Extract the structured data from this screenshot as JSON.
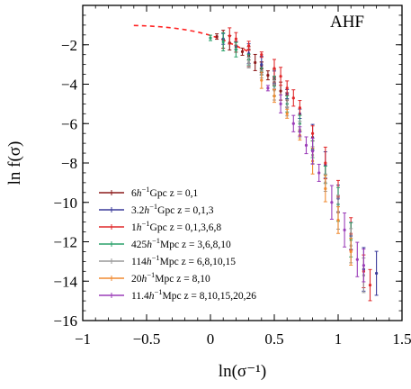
{
  "chart_data": {
    "type": "scatter",
    "title": "",
    "annotation": "AHF",
    "xlabel": "ln(σ⁻¹)",
    "ylabel": "ln f(σ)",
    "xlim": [
      -1,
      1.5
    ],
    "ylim": [
      -16,
      0
    ],
    "xticks": [
      -1,
      -0.5,
      0,
      0.5,
      1,
      1.5
    ],
    "xtick_labels": [
      "−1",
      "−0.5",
      "0",
      "0.5",
      "1",
      "1.5"
    ],
    "yticks": [
      -16,
      -14,
      -12,
      -10,
      -8,
      -6,
      -4,
      -2
    ],
    "ytick_labels": [
      "−16",
      "−14",
      "−12",
      "−10",
      "−8",
      "−6",
      "−4",
      "−2"
    ],
    "grid": false,
    "legend_position": "lower-left",
    "fit_curve": {
      "style": "dashed",
      "color": "#ff2222",
      "points": [
        [
          -0.6,
          -1.02
        ],
        [
          -0.5,
          -1.04
        ],
        [
          -0.4,
          -1.08
        ],
        [
          -0.3,
          -1.14
        ],
        [
          -0.2,
          -1.23
        ],
        [
          -0.1,
          -1.35
        ],
        [
          0.0,
          -1.52
        ],
        [
          0.1,
          -1.75
        ],
        [
          0.2,
          -2.05
        ],
        [
          0.3,
          -2.35
        ]
      ]
    },
    "series": [
      {
        "name": "6h⁻¹Gpc z = 0,1",
        "label_parts": [
          "6",
          "h",
          "−1",
          "Gpc z = 0,1"
        ],
        "color": "#8b1a1a",
        "points": [
          [
            0.05,
            -1.58
          ],
          [
            0.1,
            -1.72
          ],
          [
            0.15,
            -1.9
          ],
          [
            0.2,
            -2.1
          ],
          [
            0.25,
            -2.35
          ],
          [
            0.3,
            -2.6
          ],
          [
            0.35,
            -2.9
          ],
          [
            0.4,
            -3.2
          ],
          [
            0.45,
            -3.55
          ],
          [
            0.5,
            -3.9
          ],
          [
            0.55,
            -4.35
          ],
          [
            0.6,
            -4.8
          ],
          [
            0.3,
            -2.5
          ],
          [
            0.4,
            -3.05
          ],
          [
            0.5,
            -3.75
          ]
        ]
      },
      {
        "name": "3.2h⁻¹Gpc z = 0,1,3",
        "label_parts": [
          "3.2",
          "h",
          "−1",
          "Gpc z = 0,1,3"
        ],
        "color": "#3a3a9a",
        "points": [
          [
            0.1,
            -1.7
          ],
          [
            0.2,
            -2.05
          ],
          [
            0.3,
            -2.45
          ],
          [
            0.4,
            -3.0
          ],
          [
            0.5,
            -3.65
          ],
          [
            0.6,
            -4.5
          ],
          [
            0.7,
            -5.5
          ],
          [
            0.8,
            -6.7
          ],
          [
            0.9,
            -8.1
          ],
          [
            1.0,
            -9.8
          ],
          [
            1.1,
            -11.7
          ],
          [
            1.2,
            -13.4
          ],
          [
            1.3,
            -13.6
          ]
        ]
      },
      {
        "name": "1h⁻¹Gpc z = 0,1,3,6,8",
        "label_parts": [
          "1",
          "h",
          "−1",
          "Gpc z = 0,1,3,6,8"
        ],
        "color": "#e0282a",
        "points": [
          [
            0.15,
            -1.55
          ],
          [
            0.2,
            -1.7
          ],
          [
            0.3,
            -2.05
          ],
          [
            0.4,
            -2.5
          ],
          [
            0.5,
            -3.2
          ],
          [
            0.6,
            -4.2
          ],
          [
            0.7,
            -5.2
          ],
          [
            0.8,
            -6.5
          ],
          [
            0.9,
            -8.0
          ],
          [
            1.0,
            -9.7
          ],
          [
            1.1,
            -11.6
          ],
          [
            1.2,
            -13.5
          ],
          [
            1.25,
            -14.2
          ],
          [
            0.55,
            -3.6
          ],
          [
            0.65,
            -4.7
          ]
        ]
      },
      {
        "name": "425h⁻¹Mpc z = 3,6,8,10",
        "label_parts": [
          "425",
          "h",
          "−1",
          "Mpc z = 3,6,8,10"
        ],
        "color": "#2aa06a",
        "points": [
          [
            0.0,
            -1.65
          ],
          [
            0.1,
            -1.85
          ],
          [
            0.2,
            -2.25
          ],
          [
            0.3,
            -2.75
          ],
          [
            0.4,
            -3.35
          ],
          [
            0.5,
            -4.1
          ],
          [
            0.6,
            -5.0
          ],
          [
            0.7,
            -6.0
          ],
          [
            0.8,
            -7.3
          ],
          [
            0.9,
            -8.6
          ],
          [
            1.0,
            -10.1
          ],
          [
            1.1,
            -11.9
          ]
        ]
      },
      {
        "name": "114h⁻¹Mpc z = 6,8,10,15",
        "label_parts": [
          "114",
          "h",
          "−1",
          "Mpc z = 6,8,10,15"
        ],
        "color": "#999999",
        "points": [
          [
            0.3,
            -2.9
          ],
          [
            0.4,
            -3.5
          ],
          [
            0.5,
            -4.3
          ],
          [
            0.6,
            -5.2
          ],
          [
            0.7,
            -6.3
          ],
          [
            0.8,
            -7.6
          ],
          [
            0.9,
            -9.0
          ],
          [
            1.0,
            -10.5
          ],
          [
            1.1,
            -12.2
          ],
          [
            1.2,
            -13.7
          ]
        ]
      },
      {
        "name": "20h⁻¹Mpc z = 8,10",
        "label_parts": [
          "20",
          "h",
          "−1",
          "Mpc z = 8,10"
        ],
        "color": "#f08a30",
        "points": [
          [
            0.4,
            -3.8
          ],
          [
            0.5,
            -4.6
          ],
          [
            0.6,
            -5.5
          ],
          [
            0.7,
            -6.6
          ],
          [
            0.8,
            -7.9
          ],
          [
            0.9,
            -9.3
          ],
          [
            1.0,
            -10.9
          ],
          [
            1.1,
            -12.5
          ]
        ]
      },
      {
        "name": "11.4h⁻¹Mpc z = 8,10,15,20,26",
        "label_parts": [
          "11.4",
          "h",
          "−1",
          "Mpc z = 8,10,15,20,26"
        ],
        "color": "#9b3db8",
        "points": [
          [
            0.45,
            -4.2
          ],
          [
            0.55,
            -5.0
          ],
          [
            0.65,
            -6.0
          ],
          [
            0.75,
            -7.1
          ],
          [
            0.85,
            -8.5
          ],
          [
            0.95,
            -10.0
          ],
          [
            1.05,
            -11.4
          ],
          [
            1.15,
            -12.9
          ],
          [
            1.2,
            -13.2
          ],
          [
            0.7,
            -6.4
          ],
          [
            0.8,
            -7.4
          ]
        ]
      }
    ]
  }
}
